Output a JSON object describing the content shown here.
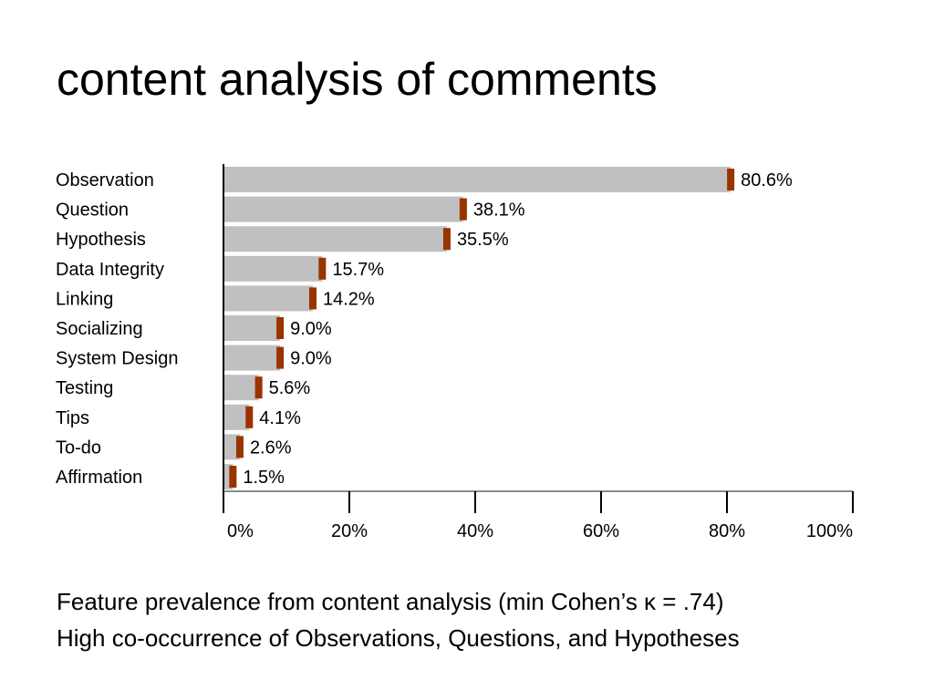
{
  "slide": {
    "title": "content analysis of comments",
    "captions": [
      "Feature prevalence from content analysis (min Cohen’s κ = .74)",
      "High co-occurrence of Observations, Questions, and Hypotheses"
    ]
  },
  "colors": {
    "bar": "#c0c0c0",
    "marker": "#993300",
    "axis": "#000000"
  },
  "chart_data": {
    "type": "bar",
    "orientation": "horizontal",
    "categories": [
      "Observation",
      "Question",
      "Hypothesis",
      "Data Integrity",
      "Linking",
      "Socializing",
      "System Design",
      "Testing",
      "Tips",
      "To-do",
      "Affirmation"
    ],
    "values": [
      80.6,
      38.1,
      35.5,
      15.7,
      14.2,
      9.0,
      9.0,
      5.6,
      4.1,
      2.6,
      1.5
    ],
    "value_labels": [
      "80.6%",
      "38.1%",
      "35.5%",
      "15.7%",
      "14.2%",
      "9.0%",
      "9.0%",
      "5.6%",
      "4.1%",
      "2.6%",
      "1.5%"
    ],
    "xlim": [
      0,
      100
    ],
    "x_ticks": [
      0,
      20,
      40,
      60,
      80,
      100
    ],
    "x_tick_labels": [
      "0%",
      "20%",
      "40%",
      "60%",
      "80%",
      "100%"
    ],
    "grid": false,
    "legend": "none"
  }
}
